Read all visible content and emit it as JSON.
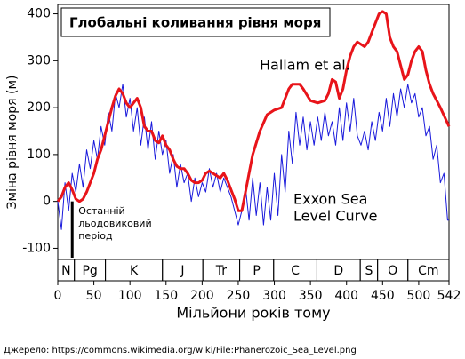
{
  "chart_data": {
    "type": "line",
    "title": "Глобальні коливання рівня моря",
    "x_label": "Мільйони років тому",
    "y_label": "Зміна рівня моря (м)",
    "source": "Джерело: https://commons.wikimedia.org/wiki/File:Phanerozoic_Sea_Level.png",
    "xlim": [
      0,
      542
    ],
    "ylim": [
      -120,
      420
    ],
    "xticks": [
      0,
      50,
      100,
      150,
      200,
      250,
      300,
      350,
      400,
      450,
      500,
      542
    ],
    "yticks": [
      -100,
      0,
      100,
      200,
      300,
      400
    ],
    "series": [
      {
        "name": "Hallam et al.",
        "color": "#e8141a",
        "x": [
          0,
          5,
          10,
          15,
          20,
          25,
          30,
          35,
          40,
          45,
          50,
          55,
          60,
          65,
          70,
          75,
          80,
          85,
          90,
          95,
          100,
          105,
          110,
          115,
          120,
          125,
          130,
          135,
          140,
          145,
          150,
          155,
          160,
          165,
          170,
          175,
          180,
          185,
          190,
          195,
          200,
          205,
          210,
          215,
          220,
          225,
          230,
          235,
          240,
          245,
          250,
          255,
          260,
          265,
          270,
          280,
          290,
          300,
          310,
          320,
          325,
          335,
          340,
          350,
          360,
          370,
          375,
          380,
          385,
          390,
          395,
          400,
          405,
          410,
          415,
          420,
          425,
          430,
          435,
          440,
          445,
          450,
          455,
          460,
          465,
          470,
          475,
          480,
          485,
          490,
          495,
          500,
          505,
          510,
          515,
          520,
          530,
          542
        ],
        "values": [
          0,
          10,
          30,
          40,
          25,
          5,
          0,
          5,
          20,
          40,
          60,
          90,
          110,
          140,
          170,
          200,
          225,
          240,
          230,
          210,
          200,
          210,
          220,
          200,
          160,
          150,
          150,
          130,
          125,
          140,
          120,
          110,
          90,
          75,
          70,
          70,
          60,
          45,
          40,
          40,
          45,
          60,
          65,
          60,
          55,
          50,
          60,
          45,
          25,
          5,
          -20,
          -20,
          20,
          60,
          100,
          150,
          185,
          195,
          200,
          240,
          250,
          250,
          240,
          215,
          210,
          215,
          230,
          260,
          255,
          220,
          240,
          280,
          310,
          330,
          340,
          335,
          330,
          340,
          360,
          380,
          400,
          405,
          400,
          350,
          330,
          320,
          290,
          260,
          270,
          300,
          320,
          330,
          320,
          280,
          250,
          230,
          200,
          160
        ]
      },
      {
        "name": "Exxon Sea Level Curve",
        "color": "#1a1adc",
        "x": [
          0,
          5,
          10,
          15,
          20,
          25,
          30,
          35,
          40,
          45,
          50,
          55,
          60,
          65,
          70,
          75,
          80,
          85,
          90,
          95,
          100,
          105,
          110,
          115,
          120,
          125,
          130,
          135,
          140,
          145,
          150,
          155,
          160,
          165,
          170,
          175,
          180,
          185,
          190,
          195,
          200,
          205,
          210,
          215,
          220,
          225,
          230,
          235,
          240,
          245,
          250,
          255,
          260,
          265,
          270,
          275,
          280,
          285,
          290,
          295,
          300,
          305,
          310,
          315,
          320,
          325,
          330,
          335,
          340,
          345,
          350,
          355,
          360,
          365,
          370,
          375,
          380,
          385,
          390,
          395,
          400,
          405,
          410,
          415,
          420,
          425,
          430,
          435,
          440,
          445,
          450,
          455,
          460,
          465,
          470,
          475,
          480,
          485,
          490,
          495,
          500,
          505,
          510,
          515,
          520,
          525,
          530,
          535,
          540,
          542
        ],
        "values": [
          0,
          -60,
          40,
          -20,
          60,
          20,
          80,
          30,
          110,
          70,
          130,
          90,
          160,
          120,
          190,
          150,
          230,
          200,
          250,
          180,
          220,
          150,
          200,
          120,
          180,
          110,
          170,
          90,
          150,
          100,
          130,
          60,
          100,
          30,
          80,
          40,
          60,
          0,
          50,
          10,
          40,
          20,
          70,
          30,
          60,
          20,
          50,
          30,
          10,
          -20,
          -50,
          -20,
          30,
          -40,
          50,
          -30,
          40,
          -50,
          30,
          -40,
          60,
          -30,
          100,
          20,
          150,
          80,
          190,
          120,
          180,
          110,
          170,
          120,
          180,
          130,
          190,
          140,
          170,
          120,
          200,
          130,
          210,
          150,
          220,
          140,
          120,
          150,
          110,
          170,
          130,
          190,
          150,
          220,
          160,
          230,
          180,
          240,
          200,
          250,
          210,
          230,
          180,
          200,
          140,
          160,
          90,
          120,
          40,
          60,
          -40,
          -40
        ]
      }
    ],
    "series_labels": [
      [
        "Hallam et al."
      ],
      [
        "Exxon Sea",
        "Level Curve"
      ]
    ],
    "ice_age": {
      "x": 20,
      "from": 0,
      "to": -120,
      "label": [
        "Останній",
        "льодовиковий",
        "період"
      ]
    },
    "periods": [
      {
        "name": "N",
        "start": 0,
        "end": 23
      },
      {
        "name": "Pg",
        "start": 23,
        "end": 66
      },
      {
        "name": "K",
        "start": 66,
        "end": 145
      },
      {
        "name": "J",
        "start": 145,
        "end": 201
      },
      {
        "name": "Tr",
        "start": 201,
        "end": 252
      },
      {
        "name": "P",
        "start": 252,
        "end": 299
      },
      {
        "name": "C",
        "start": 299,
        "end": 359
      },
      {
        "name": "D",
        "start": 359,
        "end": 419
      },
      {
        "name": "S",
        "start": 419,
        "end": 443
      },
      {
        "name": "O",
        "start": 443,
        "end": 485
      },
      {
        "name": "Cm",
        "start": 485,
        "end": 542
      }
    ]
  }
}
